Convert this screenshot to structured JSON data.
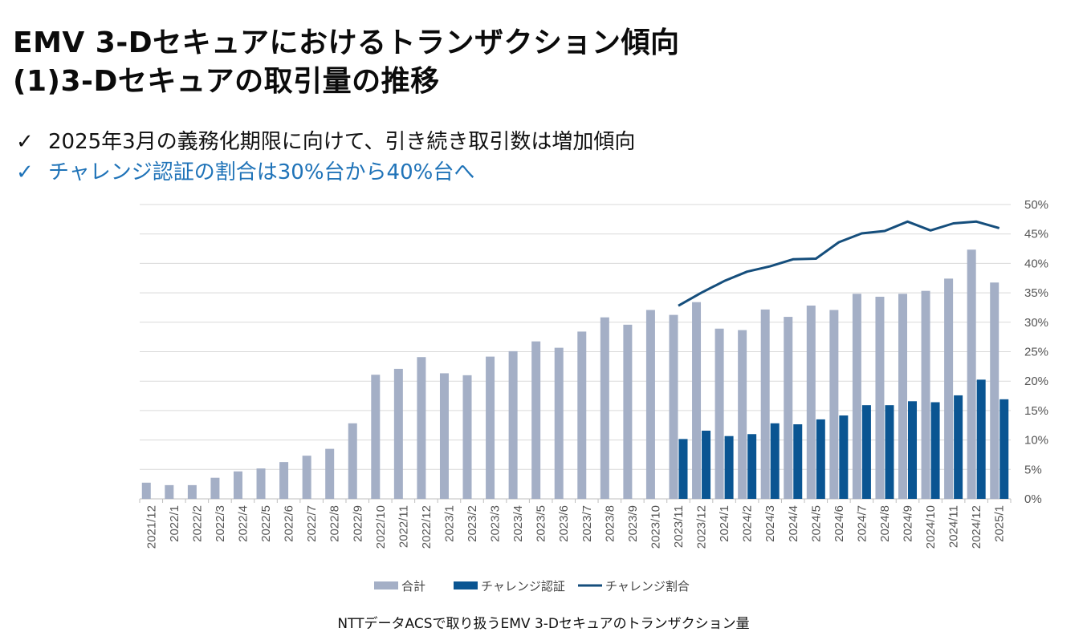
{
  "title": {
    "line1": "EMV  3-Dセキュアにおけるトランザクション傾向",
    "line2": "(1)3-Dセキュアの取引量の推移"
  },
  "bullets": [
    {
      "check": "✓",
      "text": "2025年3月の義務化期限に向けて、引き続き取引数は増加傾向",
      "color": "#111111"
    },
    {
      "check": "✓",
      "text": "チャレンジ認証の割合は30%台から40%台へ",
      "color": "#1f73b8"
    }
  ],
  "caption": "NTTデータACSで取り扱うEMV 3-Dセキュアのトランザクション量",
  "chart_data": {
    "type": "bar",
    "categories": [
      "2021/12",
      "2022/1",
      "2022/2",
      "2022/3",
      "2022/4",
      "2022/5",
      "2022/6",
      "2022/7",
      "2022/8",
      "2022/9",
      "2022/10",
      "2022/11",
      "2022/12",
      "2023/1",
      "2023/2",
      "2023/3",
      "2023/4",
      "2023/5",
      "2023/6",
      "2023/7",
      "2023/8",
      "2023/9",
      "2023/10",
      "2023/11",
      "2023/12",
      "2024/1",
      "2024/2",
      "2024/3",
      "2024/4",
      "2024/5",
      "2024/6",
      "2024/7",
      "2024/8",
      "2024/9",
      "2024/10",
      "2024/11",
      "2024/12",
      "2025/1"
    ],
    "series": [
      {
        "name": "合計",
        "type": "bar",
        "color": "#a4afc6",
        "values": [
          3.3,
          2.8,
          2.8,
          4.3,
          5.6,
          6.2,
          7.5,
          8.8,
          10.2,
          15.4,
          25.3,
          26.5,
          28.9,
          25.6,
          25.2,
          29.0,
          30.1,
          32.1,
          30.8,
          34.1,
          37.0,
          35.5,
          38.5,
          37.5,
          40.1,
          34.7,
          34.4,
          38.6,
          37.1,
          39.4,
          38.5,
          41.8,
          41.2,
          41.8,
          42.4,
          44.9,
          50.8,
          44.1
        ]
      },
      {
        "name": "チャレンジ認証",
        "type": "bar",
        "color": "#0a5592",
        "values": [
          null,
          null,
          null,
          null,
          null,
          null,
          null,
          null,
          null,
          null,
          null,
          null,
          null,
          null,
          null,
          null,
          null,
          null,
          null,
          null,
          null,
          null,
          null,
          12.2,
          13.9,
          12.8,
          13.2,
          15.4,
          15.2,
          16.2,
          17.0,
          19.1,
          19.1,
          19.9,
          19.7,
          21.1,
          24.3,
          20.3
        ]
      },
      {
        "name": "チャレンジ割合",
        "type": "line",
        "axis": "right",
        "color": "#154e7c",
        "values": [
          null,
          null,
          null,
          null,
          null,
          null,
          null,
          null,
          null,
          null,
          null,
          null,
          null,
          null,
          null,
          null,
          null,
          null,
          null,
          null,
          null,
          null,
          null,
          32.8,
          35.0,
          37.0,
          38.6,
          39.5,
          40.7,
          40.8,
          43.6,
          45.1,
          45.5,
          47.1,
          45.6,
          46.8,
          47.1,
          46.0
        ]
      }
    ],
    "ylim": [
      0,
      60
    ],
    "y2lim": [
      0,
      50
    ],
    "y2ticks": [
      "0%",
      "5%",
      "10%",
      "15%",
      "20%",
      "25%",
      "30%",
      "35%",
      "40%",
      "45%",
      "50%"
    ],
    "grid": true,
    "legend": "bottom-center"
  }
}
